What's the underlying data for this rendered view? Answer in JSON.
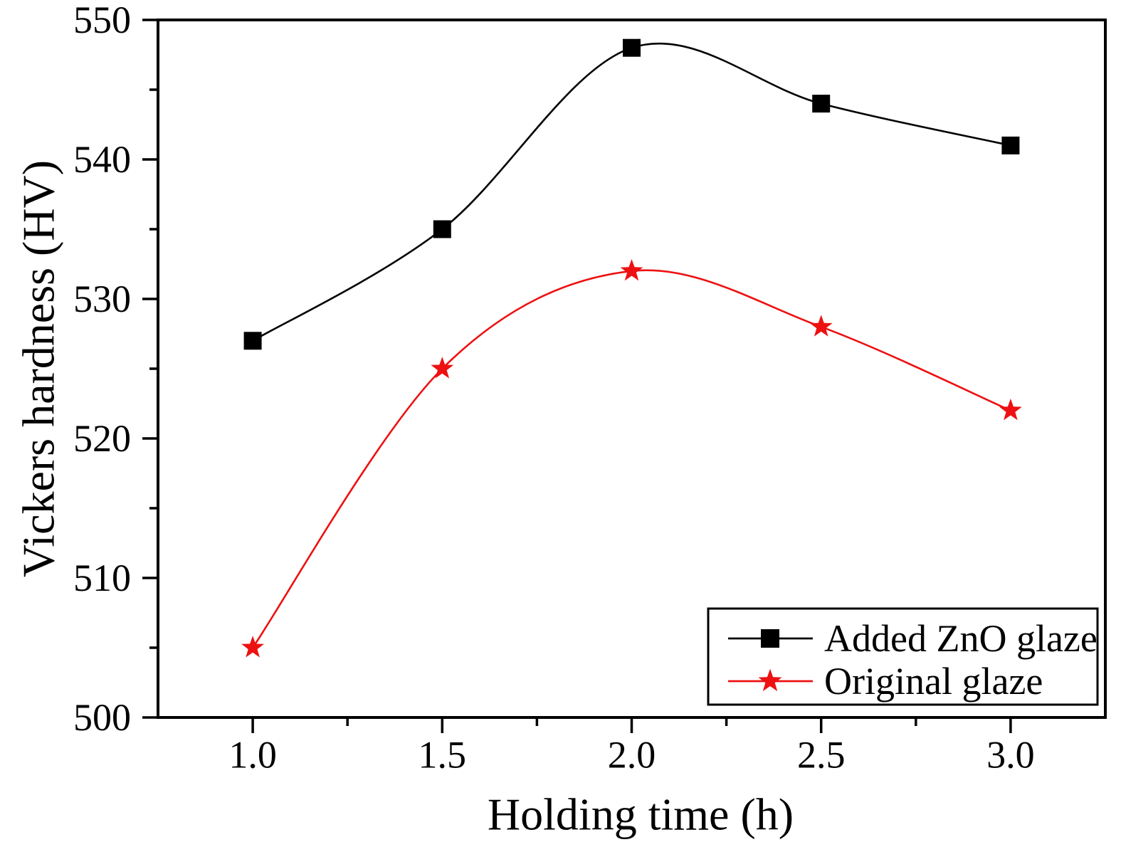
{
  "figure": {
    "background": "#ffffff",
    "text_color": "#000000"
  },
  "chart_data": {
    "type": "line",
    "title": "",
    "xlabel": "Holding time (h)",
    "ylabel": "Vickers hardness (HV)",
    "x": [
      1.0,
      1.5,
      2.0,
      2.5,
      3.0
    ],
    "series": [
      {
        "name": "Added ZnO glaze",
        "values": [
          527,
          535,
          548,
          544,
          541
        ],
        "color": "#000000",
        "marker": "square"
      },
      {
        "name": "Original glaze",
        "values": [
          505,
          525,
          532,
          528,
          522
        ],
        "color": "#ed1111",
        "marker": "star"
      }
    ],
    "xlim": [
      0.75,
      3.25
    ],
    "ylim": [
      500,
      550
    ],
    "x_ticks": [
      1.0,
      1.5,
      2.0,
      2.5,
      3.0
    ],
    "x_tick_labels": [
      "1.0",
      "1.5",
      "2.0",
      "2.5",
      "3.0"
    ],
    "x_minor_ticks": [
      1.25,
      1.75,
      2.25,
      2.75
    ],
    "y_ticks": [
      500,
      510,
      520,
      530,
      540,
      550
    ],
    "y_minor_ticks": [
      505,
      515,
      525,
      535,
      545
    ],
    "grid": false,
    "curve": "smooth",
    "legend_position": "bottom-right"
  }
}
